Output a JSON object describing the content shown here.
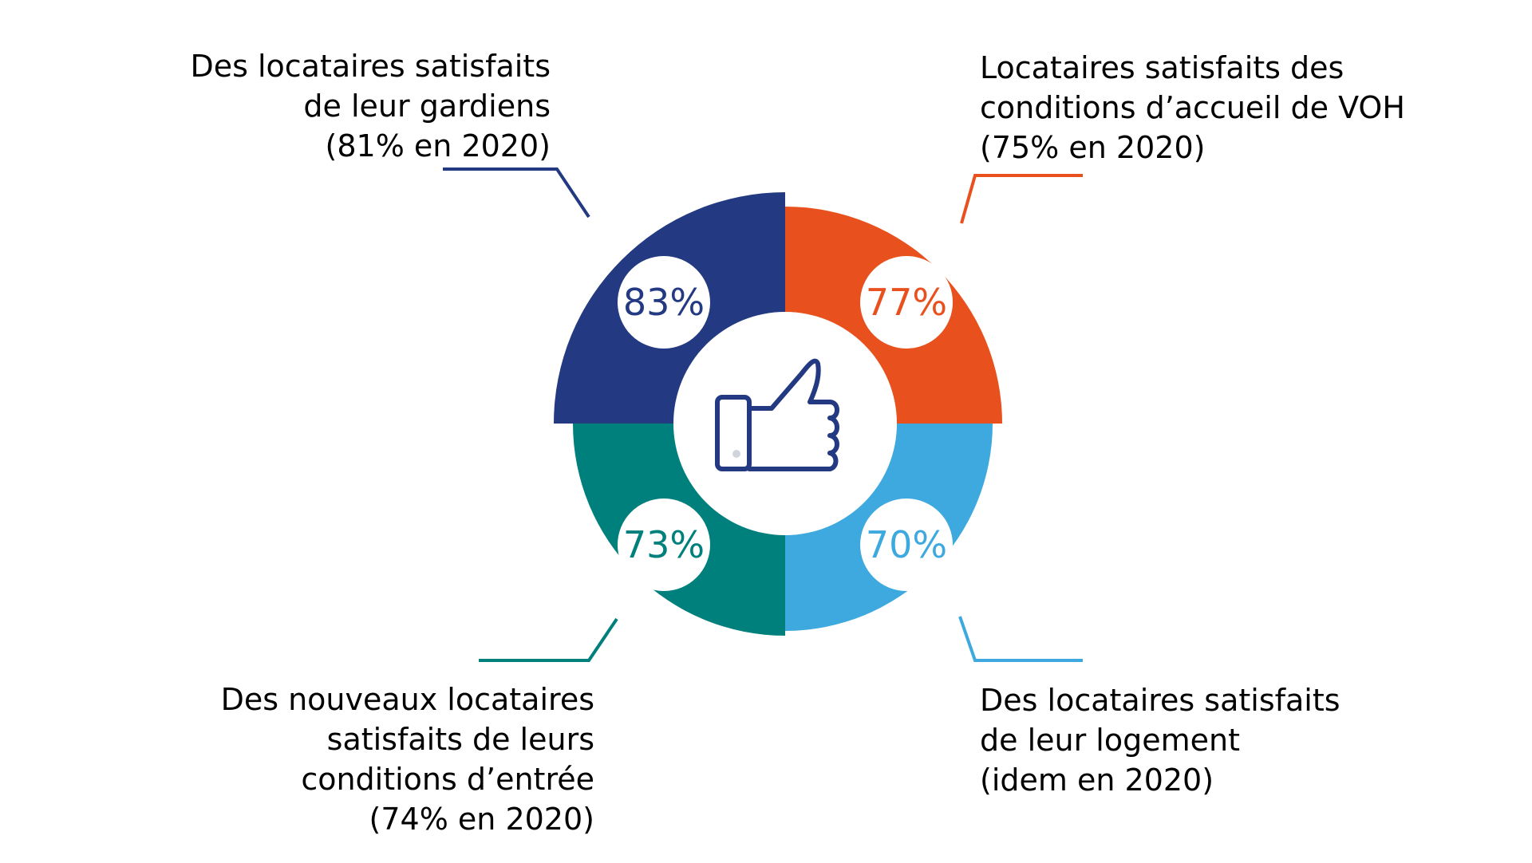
{
  "chart_data": {
    "type": "pie",
    "center_icon": "thumbs-up-icon",
    "segments": [
      {
        "id": "tl",
        "value": 83,
        "value_label": "83%",
        "color": "#233a83",
        "label": "Des locataires satisfaits\nde leur gardiens\n(81% en 2020)"
      },
      {
        "id": "tr",
        "value": 77,
        "value_label": "77%",
        "color": "#e8511e",
        "label": "Locataires satisfaits des\nconditions d’accueil de VOH\n(75% en 2020)"
      },
      {
        "id": "br",
        "value": 70,
        "value_label": "70%",
        "color": "#3ea9df",
        "label": "Des locataires satisfaits\nde leur logement\n(idem en 2020)"
      },
      {
        "id": "bl",
        "value": 73,
        "value_label": "73%",
        "color": "#00807c",
        "label": "Des nouveaux locataires\nsatisfaits de leurs\nconditions d’entrée\n(74% en 2020)"
      }
    ]
  }
}
